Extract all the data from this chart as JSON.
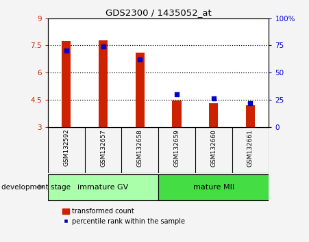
{
  "title": "GDS2300 / 1435052_at",
  "categories": [
    "GSM132592",
    "GSM132657",
    "GSM132658",
    "GSM132659",
    "GSM132660",
    "GSM132661"
  ],
  "red_values": [
    7.75,
    7.77,
    7.1,
    4.45,
    4.3,
    4.2
  ],
  "blue_percentiles": [
    70,
    74,
    62,
    30,
    26,
    22
  ],
  "bar_bottom": 3.0,
  "ylim_left": [
    3,
    9
  ],
  "ylim_right": [
    0,
    100
  ],
  "yticks_left": [
    3,
    4.5,
    6,
    7.5,
    9
  ],
  "yticks_right": [
    0,
    25,
    50,
    75,
    100
  ],
  "ytick_labels_right": [
    "0",
    "25",
    "50",
    "75",
    "100%"
  ],
  "group_labels": [
    "immature GV",
    "mature MII"
  ],
  "group_colors": [
    "#aaffaa",
    "#44dd44"
  ],
  "bar_color": "#cc2200",
  "dot_color": "#0000cc",
  "cell_bg_color": "#d0d0d0",
  "plot_bg_color": "#ffffff",
  "fig_bg_color": "#f4f4f4",
  "legend_labels": [
    "transformed count",
    "percentile rank within the sample"
  ],
  "development_stage_label": "development stage"
}
